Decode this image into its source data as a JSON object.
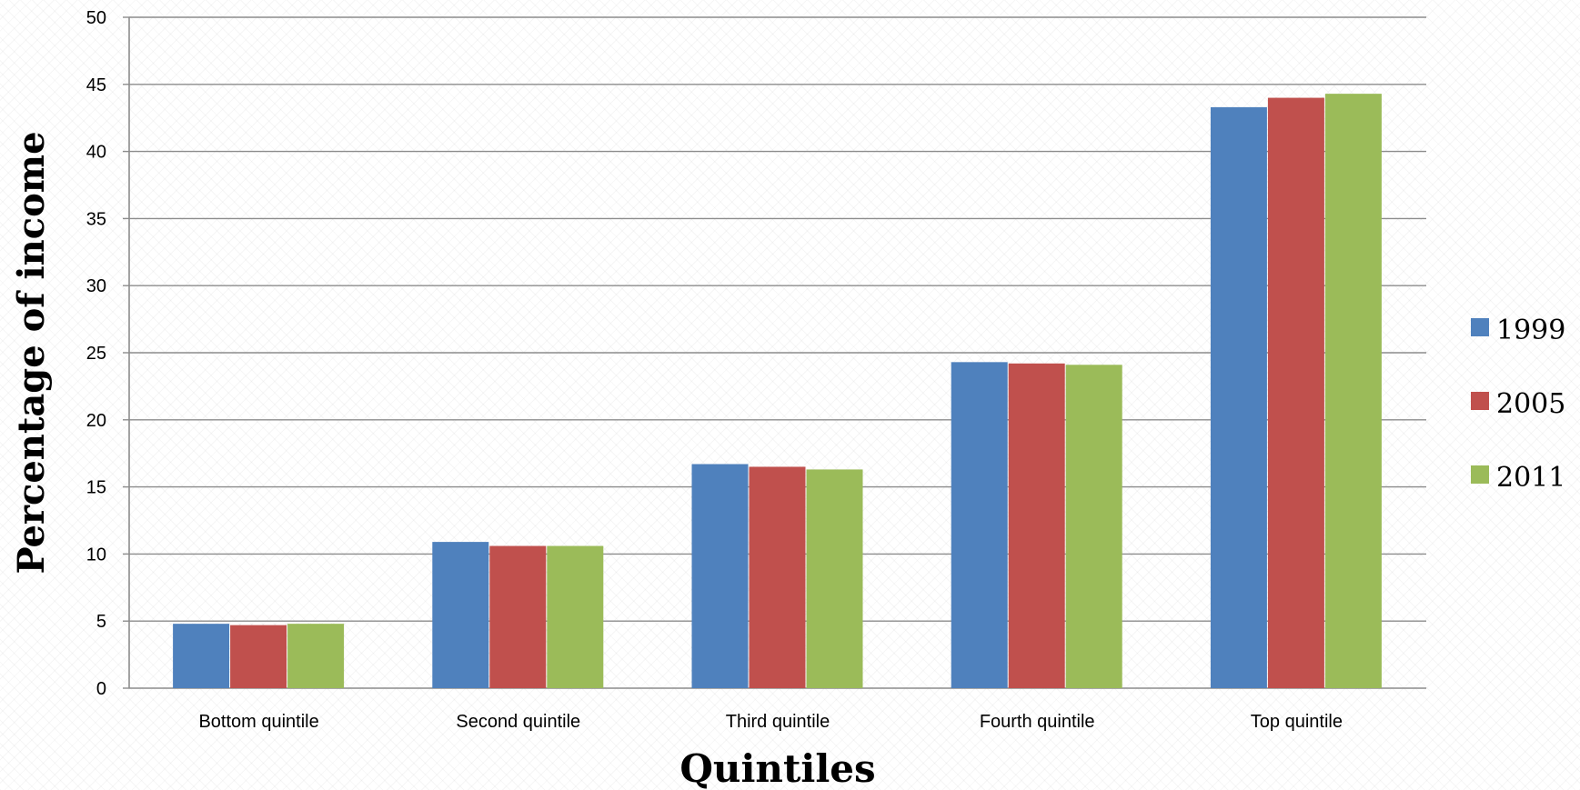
{
  "chart_data": {
    "type": "bar",
    "categories": [
      "Bottom quintile",
      "Second quintile",
      "Third quintile",
      "Fourth quintile",
      "Top quintile"
    ],
    "series": [
      {
        "name": "1999",
        "color": "#4f81bd",
        "values": [
          4.8,
          10.9,
          16.7,
          24.3,
          43.3
        ]
      },
      {
        "name": "2005",
        "color": "#c0504d",
        "values": [
          4.7,
          10.6,
          16.5,
          24.2,
          44.0
        ]
      },
      {
        "name": "2011",
        "color": "#9bbb59",
        "values": [
          4.8,
          10.6,
          16.3,
          24.1,
          44.3
        ]
      }
    ],
    "xlabel": "Quintiles",
    "ylabel": "Percentage of income",
    "ylim": [
      0,
      50
    ],
    "yticks": [
      0,
      5,
      10,
      15,
      20,
      25,
      30,
      35,
      40,
      45,
      50
    ],
    "grid": true,
    "legend_position": "right"
  }
}
